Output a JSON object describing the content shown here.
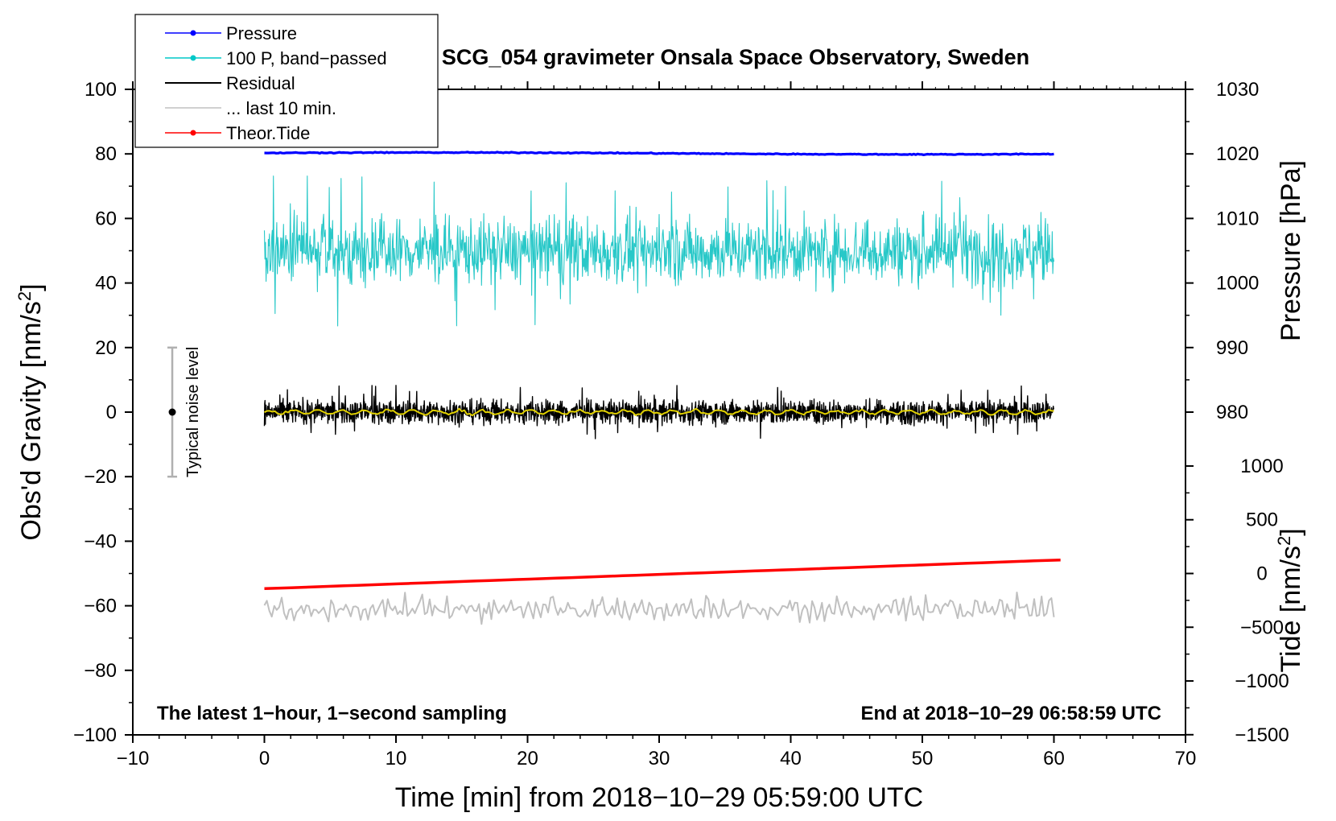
{
  "chart_data": {
    "type": "line",
    "title": "SCG_054 gravimeter Onsala Space Observatory, Sweden",
    "xlabel": "Time [min] from 2018−10−29 05:59:00 UTC",
    "ylabel": "Obs'd Gravity [nm/s",
    "ylabel_sup": "2",
    "ylabel_end": "]",
    "y2label": "Pressure [hPa]",
    "y3label": "Tide [nm/s",
    "y3label_sup": "2",
    "y3label_end": "]",
    "xlim": [
      -10,
      70
    ],
    "ylim": [
      -100,
      100
    ],
    "xticks": [
      "−10",
      "0",
      "10",
      "20",
      "30",
      "40",
      "50",
      "60",
      "70"
    ],
    "xtick_values": [
      -10,
      0,
      10,
      20,
      30,
      40,
      50,
      60,
      70
    ],
    "yticks": [
      "−100",
      "−80",
      "−60",
      "−40",
      "−20",
      "0",
      "20",
      "40",
      "60",
      "80",
      "100"
    ],
    "ytick_values": [
      -100,
      -80,
      -60,
      -40,
      -20,
      0,
      20,
      40,
      60,
      80,
      100
    ],
    "pressure_axis": {
      "ticks": [
        "980",
        "990",
        "1000",
        "1010",
        "1020",
        "1030"
      ],
      "tick_values": [
        980,
        990,
        1000,
        1010,
        1020,
        1030
      ],
      "gravity_at_1000": 40,
      "gravity_per_hpa": 2
    },
    "tide_axis": {
      "ticks": [
        "−1500",
        "−1000",
        "−500",
        "0",
        "500",
        "1000"
      ],
      "tick_values": [
        -1500,
        -1000,
        -500,
        0,
        500,
        1000
      ],
      "gravity_at_0": -50,
      "gravity_per_unit": 0.0333
    },
    "legend": [
      {
        "label": "Pressure",
        "color": "#0000ff",
        "marker": true
      },
      {
        "label": "100 P, band−passed",
        "color": "#00c8c8",
        "marker": true
      },
      {
        "label": "Residual",
        "color": "#000000",
        "marker": false
      },
      {
        "label": "... last 10 min.",
        "color": "#c0c0c0",
        "marker": false
      },
      {
        "label": "Theor.Tide",
        "color": "#ff0000",
        "marker": true
      }
    ],
    "series": [
      {
        "name": "Pressure",
        "color": "#0000ff",
        "x_range": [
          0,
          60
        ],
        "start": 80.3,
        "end": 80.0,
        "noise": 0.25,
        "width": 3.2
      },
      {
        "name": "100 P, band−passed",
        "color": "#28c8c8",
        "x_range": [
          0,
          60
        ],
        "center": 50,
        "amplitude": 8,
        "spikes": 16,
        "width": 1.1
      },
      {
        "name": "Residual",
        "color": "#000000",
        "x_range": [
          0,
          60
        ],
        "center": 0,
        "amplitude": 2.5,
        "spikes": 6,
        "width": 1.4
      },
      {
        "name": "Residual smoothed",
        "color": "#e0d000",
        "x_range": [
          0,
          60
        ],
        "center": 0,
        "amplitude": 0.6,
        "width": 2
      },
      {
        "name": "... last 10 min.",
        "color": "#c0c0c0",
        "x_range": [
          0,
          60
        ],
        "center": -61,
        "amplitude": 3,
        "width": 2
      },
      {
        "name": "Theor.Tide",
        "color": "#ff0000",
        "x_range": [
          0,
          60.5
        ],
        "start": -54.7,
        "end": -45.8,
        "width": 3.5
      }
    ],
    "noise_bar": {
      "label": "Typical noise level",
      "x": -7,
      "y_center": 0,
      "y_low": -20,
      "y_high": 20
    },
    "annotations": {
      "left": "The latest 1−hour, 1−second sampling",
      "right": "End at 2018−10−29 06:58:59 UTC"
    }
  }
}
